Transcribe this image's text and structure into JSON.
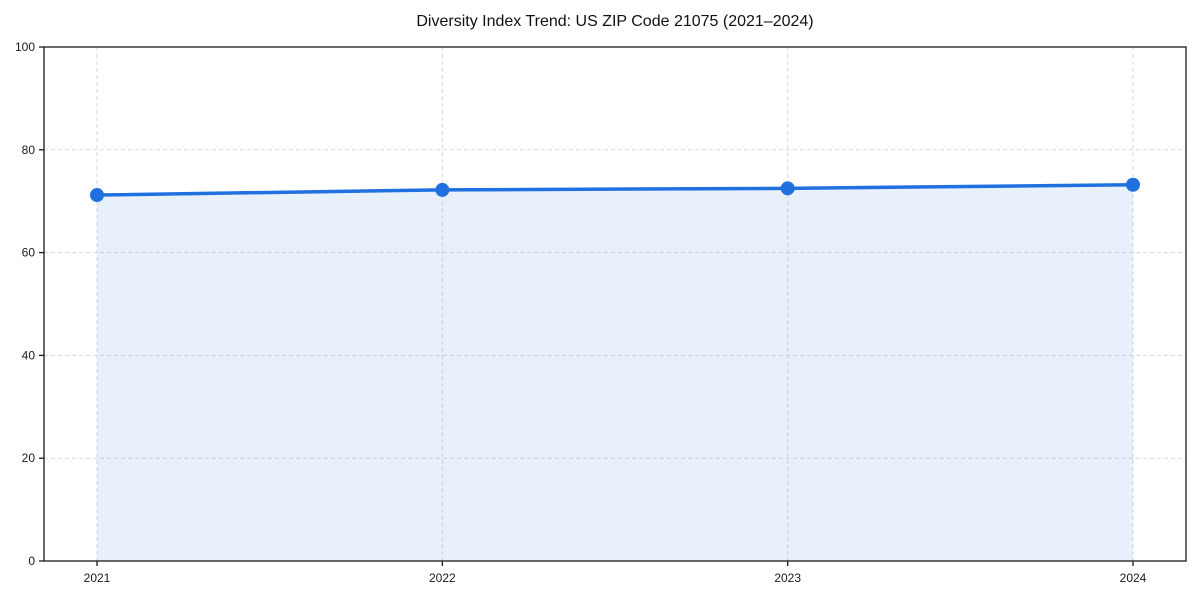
{
  "chart_data": {
    "type": "area",
    "title": "Diversity Index Trend: US ZIP Code 21075 (2021–2024)",
    "x": [
      2021,
      2022,
      2023,
      2024
    ],
    "categories": [
      "2021",
      "2022",
      "2023",
      "2024"
    ],
    "series": [
      {
        "name": "Diversity Index",
        "values": [
          71.2,
          72.2,
          72.5,
          73.2
        ]
      }
    ],
    "xlabel": "",
    "ylabel": "",
    "ylim": [
      0,
      100
    ],
    "yticks": [
      0,
      20,
      40,
      60,
      80,
      100
    ],
    "xtick_labels": [
      "2021",
      "2022",
      "2023",
      "2024"
    ],
    "grid": true,
    "grid_style": "dashed",
    "legend_position": "none",
    "colors": {
      "line": "#2170E0",
      "marker": "#2170E0",
      "fill": "#2170E0",
      "fill_opacity": 0.1,
      "grid": "#DADADA",
      "spine": "#1A1A1A",
      "tick_label": "#1A1A1A",
      "title": "#111111",
      "background": "#FFFFFF"
    },
    "marker_radius": 7,
    "line_width": 3.5
  }
}
